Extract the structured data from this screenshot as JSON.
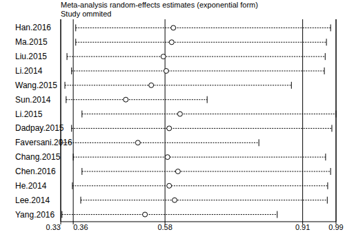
{
  "chart_data": {
    "type": "forest",
    "title": "Meta-analysis random-effects estimates (exponential form)",
    "subtitle": "Study ommited",
    "orientation": "horizontal",
    "categories": [
      "Han.2016",
      "Ma.2015",
      "Liu.2015",
      "Li.2014",
      "Wang.2015",
      "Sun.2014",
      "Li.2015",
      "Dadpay.2015",
      "Faversani.2016",
      "Chang.2015",
      "Chen.2016",
      "He.2014",
      "Lee.2014",
      "Yang.2016"
    ],
    "values": [
      0.6,
      0.596,
      0.576,
      0.583,
      0.547,
      0.486,
      0.616,
      0.59,
      0.515,
      0.586,
      0.611,
      0.59,
      0.603,
      0.532
    ],
    "ci_lower": [
      0.366,
      0.366,
      0.345,
      0.356,
      0.34,
      0.343,
      0.381,
      0.356,
      0.33,
      0.36,
      0.381,
      0.358,
      0.378,
      0.333
    ],
    "ci_upper": [
      0.977,
      0.967,
      0.964,
      0.962,
      0.883,
      0.681,
      0.99,
      0.98,
      0.805,
      0.965,
      0.977,
      0.97,
      0.969,
      0.849
    ],
    "xlim": [
      0.33,
      0.99
    ],
    "xticks": [
      0.33,
      0.36,
      0.58,
      0.91,
      0.99
    ],
    "grid": true,
    "marker": "circle",
    "line_style": "dashed",
    "color": "#000000"
  }
}
